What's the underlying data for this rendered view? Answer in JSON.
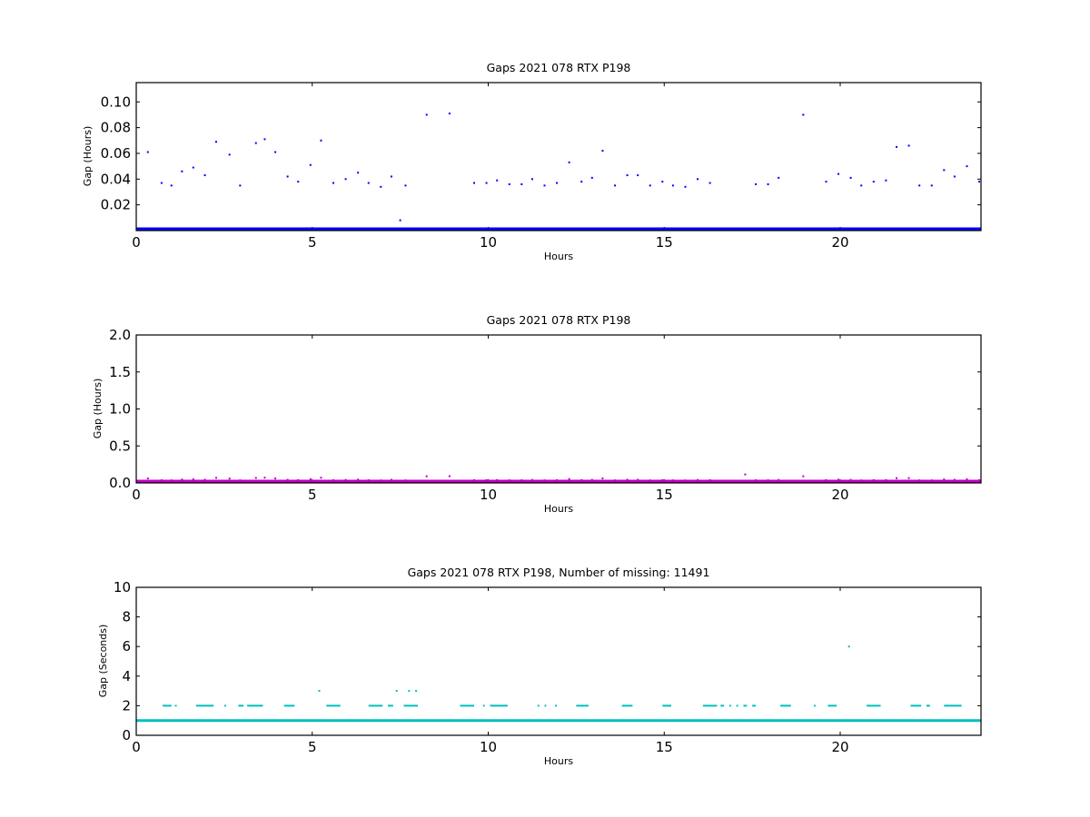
{
  "chart_data": [
    {
      "type": "scatter",
      "title": "Gaps 2021 078 RTX  P198",
      "xlabel": "Hours",
      "ylabel": "Gap (Hours)",
      "xlim": [
        0,
        24
      ],
      "ylim": [
        0,
        0.115
      ],
      "xticks": [
        "0",
        "5",
        "10",
        "15",
        "20"
      ],
      "yticks": [
        "0.02",
        "0.04",
        "0.06",
        "0.08",
        "0.10"
      ],
      "color": "#0000ff",
      "baseline": {
        "y": 0.0003,
        "x_start": 0,
        "x_end": 24
      },
      "points": [
        [
          0.33,
          0.061
        ],
        [
          0.72,
          0.037
        ],
        [
          1.0,
          0.035
        ],
        [
          1.3,
          0.046
        ],
        [
          1.62,
          0.049
        ],
        [
          1.95,
          0.043
        ],
        [
          2.27,
          0.069
        ],
        [
          2.65,
          0.059
        ],
        [
          2.95,
          0.035
        ],
        [
          3.4,
          0.068
        ],
        [
          3.65,
          0.071
        ],
        [
          3.95,
          0.061
        ],
        [
          4.3,
          0.042
        ],
        [
          4.6,
          0.038
        ],
        [
          4.95,
          0.051
        ],
        [
          5.25,
          0.07
        ],
        [
          5.6,
          0.037
        ],
        [
          5.95,
          0.04
        ],
        [
          6.3,
          0.045
        ],
        [
          6.6,
          0.037
        ],
        [
          6.95,
          0.034
        ],
        [
          7.25,
          0.042
        ],
        [
          7.5,
          0.008
        ],
        [
          7.65,
          0.035
        ],
        [
          8.25,
          0.09
        ],
        [
          8.9,
          0.091
        ],
        [
          9.6,
          0.037
        ],
        [
          9.95,
          0.037
        ],
        [
          10.25,
          0.039
        ],
        [
          10.6,
          0.036
        ],
        [
          10.95,
          0.036
        ],
        [
          11.25,
          0.04
        ],
        [
          11.6,
          0.035
        ],
        [
          11.95,
          0.037
        ],
        [
          12.3,
          0.053
        ],
        [
          12.65,
          0.038
        ],
        [
          12.95,
          0.041
        ],
        [
          13.25,
          0.062
        ],
        [
          13.6,
          0.035
        ],
        [
          13.95,
          0.043
        ],
        [
          14.25,
          0.043
        ],
        [
          14.6,
          0.035
        ],
        [
          14.95,
          0.038
        ],
        [
          15.25,
          0.035
        ],
        [
          15.6,
          0.034
        ],
        [
          15.95,
          0.04
        ],
        [
          16.3,
          0.037
        ],
        [
          17.6,
          0.036
        ],
        [
          17.95,
          0.036
        ],
        [
          18.25,
          0.041
        ],
        [
          18.95,
          0.09
        ],
        [
          19.6,
          0.038
        ],
        [
          19.95,
          0.044
        ],
        [
          20.3,
          0.041
        ],
        [
          20.6,
          0.035
        ],
        [
          20.95,
          0.038
        ],
        [
          21.3,
          0.039
        ],
        [
          21.6,
          0.065
        ],
        [
          21.95,
          0.066
        ],
        [
          22.25,
          0.035
        ],
        [
          22.6,
          0.035
        ],
        [
          22.95,
          0.047
        ],
        [
          23.25,
          0.042
        ],
        [
          23.6,
          0.05
        ],
        [
          23.95,
          0.038
        ]
      ]
    },
    {
      "type": "scatter",
      "title": "Gaps 2021 078 RTX  P198",
      "xlabel": "Hours",
      "ylabel": "Gap (Hours)",
      "xlim": [
        0,
        24
      ],
      "ylim": [
        0,
        2.0
      ],
      "xticks": [
        "0",
        "5",
        "10",
        "15",
        "20"
      ],
      "yticks": [
        "0.0",
        "0.5",
        "1.0",
        "1.5",
        "2.0"
      ],
      "color": "#bf00bf",
      "baseline": {
        "y": 0.005,
        "x_start": 0,
        "x_end": 24
      },
      "points": [
        [
          0.33,
          0.061
        ],
        [
          0.72,
          0.037
        ],
        [
          1.0,
          0.035
        ],
        [
          1.3,
          0.046
        ],
        [
          1.62,
          0.049
        ],
        [
          1.95,
          0.043
        ],
        [
          2.27,
          0.069
        ],
        [
          2.65,
          0.059
        ],
        [
          2.95,
          0.035
        ],
        [
          3.4,
          0.068
        ],
        [
          3.65,
          0.071
        ],
        [
          3.95,
          0.061
        ],
        [
          4.3,
          0.042
        ],
        [
          4.6,
          0.038
        ],
        [
          4.95,
          0.051
        ],
        [
          5.25,
          0.07
        ],
        [
          5.6,
          0.037
        ],
        [
          5.95,
          0.04
        ],
        [
          6.3,
          0.045
        ],
        [
          6.6,
          0.037
        ],
        [
          6.95,
          0.034
        ],
        [
          7.25,
          0.042
        ],
        [
          7.65,
          0.035
        ],
        [
          8.25,
          0.09
        ],
        [
          8.9,
          0.091
        ],
        [
          9.6,
          0.037
        ],
        [
          9.95,
          0.037
        ],
        [
          10.25,
          0.039
        ],
        [
          10.6,
          0.036
        ],
        [
          10.95,
          0.036
        ],
        [
          11.25,
          0.04
        ],
        [
          11.6,
          0.035
        ],
        [
          11.95,
          0.037
        ],
        [
          12.3,
          0.053
        ],
        [
          12.65,
          0.038
        ],
        [
          12.95,
          0.041
        ],
        [
          13.25,
          0.062
        ],
        [
          13.6,
          0.035
        ],
        [
          13.95,
          0.043
        ],
        [
          14.25,
          0.043
        ],
        [
          14.6,
          0.035
        ],
        [
          14.95,
          0.038
        ],
        [
          15.25,
          0.035
        ],
        [
          15.6,
          0.034
        ],
        [
          15.95,
          0.04
        ],
        [
          16.3,
          0.037
        ],
        [
          17.3,
          0.115
        ],
        [
          17.6,
          0.036
        ],
        [
          17.95,
          0.036
        ],
        [
          18.25,
          0.041
        ],
        [
          18.95,
          0.09
        ],
        [
          19.6,
          0.038
        ],
        [
          19.95,
          0.044
        ],
        [
          20.3,
          0.041
        ],
        [
          20.6,
          0.035
        ],
        [
          20.95,
          0.038
        ],
        [
          21.3,
          0.039
        ],
        [
          21.6,
          0.065
        ],
        [
          21.95,
          0.066
        ],
        [
          22.25,
          0.035
        ],
        [
          22.6,
          0.035
        ],
        [
          22.95,
          0.047
        ],
        [
          23.25,
          0.042
        ],
        [
          23.6,
          0.05
        ],
        [
          23.95,
          0.038
        ]
      ]
    },
    {
      "type": "scatter",
      "title": "Gaps 2021 078 RTX  P198, Number of missing: 11491",
      "xlabel": "Hours",
      "ylabel": "Gap (Seconds)",
      "xlim": [
        0,
        24
      ],
      "ylim": [
        0,
        10
      ],
      "xticks": [
        "0",
        "5",
        "10",
        "15",
        "20"
      ],
      "yticks": [
        "0",
        "2",
        "4",
        "6",
        "8",
        "10"
      ],
      "color": "#00bfbf",
      "baseline": {
        "y": 1,
        "x_start": 0,
        "x_end": 24
      },
      "segments_y2": [
        [
          0.75,
          1.0
        ],
        [
          1.1,
          1.15
        ],
        [
          1.7,
          2.2
        ],
        [
          2.5,
          2.55
        ],
        [
          2.9,
          3.05
        ],
        [
          3.15,
          3.6
        ],
        [
          4.2,
          4.5
        ],
        [
          5.4,
          5.8
        ],
        [
          6.6,
          7.0
        ],
        [
          7.15,
          7.3
        ],
        [
          7.6,
          8.0
        ],
        [
          9.2,
          9.6
        ],
        [
          9.85,
          9.9
        ],
        [
          10.05,
          10.55
        ],
        [
          11.4,
          11.45
        ],
        [
          11.6,
          11.65
        ],
        [
          11.9,
          11.95
        ],
        [
          12.5,
          12.85
        ],
        [
          13.8,
          14.1
        ],
        [
          14.95,
          15.2
        ],
        [
          16.1,
          16.5
        ],
        [
          16.6,
          16.7
        ],
        [
          16.85,
          16.9
        ],
        [
          17.05,
          17.1
        ],
        [
          17.25,
          17.35
        ],
        [
          17.5,
          17.6
        ],
        [
          18.3,
          18.6
        ],
        [
          19.25,
          19.3
        ],
        [
          19.65,
          19.9
        ],
        [
          20.75,
          21.15
        ],
        [
          22.0,
          22.3
        ],
        [
          22.45,
          22.55
        ],
        [
          22.95,
          23.45
        ]
      ],
      "points": [
        [
          5.2,
          3.0
        ],
        [
          7.4,
          3.0
        ],
        [
          7.75,
          3.0
        ],
        [
          7.95,
          3.0
        ],
        [
          20.25,
          6.0
        ]
      ]
    }
  ]
}
